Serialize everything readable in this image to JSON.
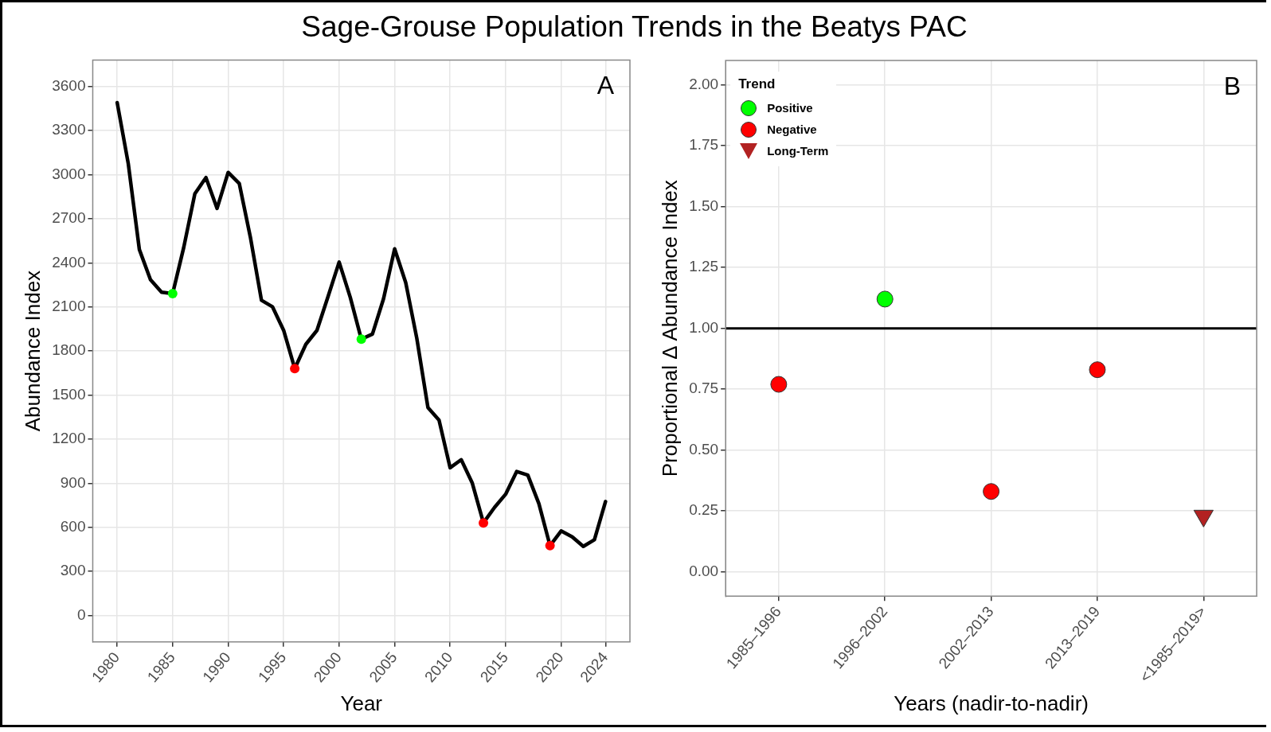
{
  "chart_data": [
    {
      "type": "line",
      "title": "Sage-Grouse Population Trends in the Beatys PAC",
      "xlabel": "Year",
      "ylabel": "Abundance Index",
      "xlim": [
        1977.8,
        2026.2
      ],
      "xticks": [
        1980,
        1985,
        1990,
        1995,
        2000,
        2005,
        2010,
        2015,
        2020,
        2024
      ],
      "ylim": [
        -180,
        3780
      ],
      "yticks": [
        0,
        300,
        600,
        900,
        1200,
        1500,
        1800,
        2100,
        2400,
        2700,
        3000,
        3300,
        3600
      ],
      "grid": true,
      "legend": false,
      "annotations": [
        "A"
      ],
      "series": [
        {
          "type": "line",
          "color": "#000000",
          "marker": "none",
          "line_style": "solid",
          "x": [
            1980,
            1981,
            1982,
            1983,
            1984,
            1985,
            1986,
            1987,
            1988,
            1989,
            1990,
            1991,
            1992,
            1993,
            1994,
            1995,
            1996,
            1997,
            1998,
            1999,
            2000,
            2001,
            2002,
            2003,
            2004,
            2005,
            2006,
            2007,
            2008,
            2009,
            2010,
            2011,
            2012,
            2013,
            2014,
            2015,
            2016,
            2017,
            2018,
            2019,
            2020,
            2021,
            2022,
            2023,
            2024
          ],
          "values": [
            3490,
            3075,
            2490,
            2285,
            2200,
            2190,
            2505,
            2870,
            2980,
            2770,
            3015,
            2940,
            2575,
            2145,
            2100,
            1940,
            1680,
            1845,
            1940,
            2170,
            2405,
            2165,
            1880,
            1915,
            2155,
            2495,
            2265,
            1885,
            1415,
            1330,
            1005,
            1060,
            900,
            630,
            735,
            825,
            980,
            955,
            760,
            475,
            575,
            535,
            470,
            515,
            775
          ]
        },
        {
          "type": "scatter",
          "marker": "circle",
          "x": [
            1985,
            1996,
            2002,
            2013,
            2019
          ],
          "values": [
            2190,
            1680,
            1880,
            630,
            475
          ],
          "colors": [
            "#00ff00",
            "#ff0000",
            "#00ff00",
            "#ff0000",
            "#ff0000"
          ]
        }
      ]
    },
    {
      "type": "scatter",
      "xlabel": "Years (nadir-to-nadir)",
      "ylabel": "Proportional Δ Abundance Index",
      "categories": [
        "1985–1996",
        "1996–2002",
        "2002–2013",
        "2013–2019",
        "<1985–2019>"
      ],
      "ylim": [
        -0.1,
        2.1
      ],
      "yticks": [
        {
          "value": 0,
          "label": "0.00"
        },
        0.25,
        {
          "value": 0.5,
          "label": "0.50"
        },
        0.75,
        {
          "value": 1,
          "label": "1.00"
        },
        1.25,
        {
          "value": 1.5,
          "label": "1.50"
        },
        1.75,
        {
          "value": 2,
          "label": "2.00"
        }
      ],
      "grid": true,
      "legend": "top left",
      "legend_title": "Trend",
      "annotations": [
        "B"
      ],
      "ref_lines": [
        {
          "axis": "y",
          "value": 1,
          "color": "#000000"
        }
      ],
      "series": [
        {
          "name": "Positive",
          "color": "#00ff00",
          "marker": "circle",
          "values": [
            null,
            1.12,
            null,
            null,
            null
          ]
        },
        {
          "name": "Negative",
          "color": "#ff0000",
          "marker": "circle",
          "values": [
            0.77,
            null,
            0.33,
            0.83,
            null
          ]
        },
        {
          "name": "Long-Term",
          "color": "#b22222",
          "marker": "triangle",
          "values": [
            null,
            null,
            null,
            null,
            0.23
          ]
        }
      ]
    }
  ]
}
